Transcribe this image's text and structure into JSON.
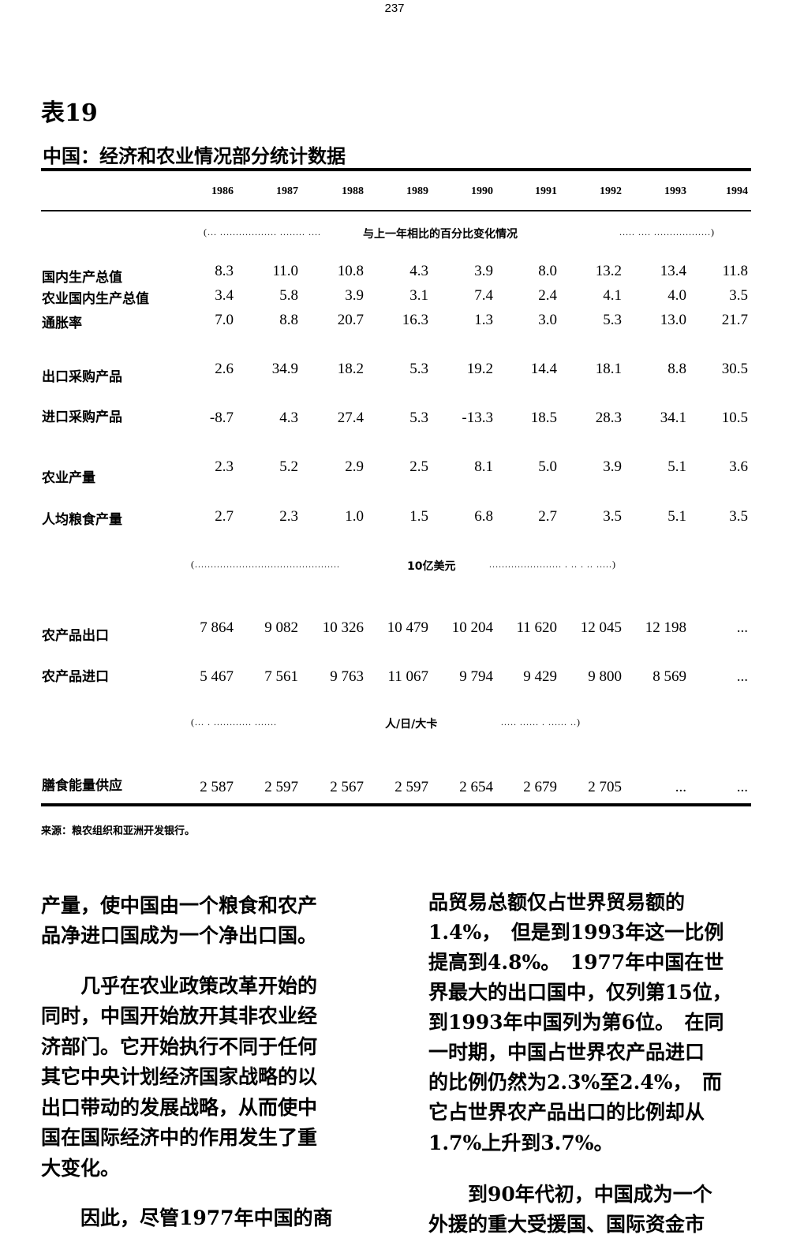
{
  "page_number": "237",
  "table": {
    "number": "表19",
    "title": "中国：经济和农业情况部分统计数据",
    "years": [
      "1986",
      "1987",
      "1988",
      "1989",
      "1990",
      "1991",
      "1992",
      "1993",
      "1994"
    ],
    "sections": [
      {
        "unit": "与上一年相比的百分比变化情况",
        "rows": [
          {
            "label": "国内生产总值",
            "values": [
              "8.3",
              "11.0",
              "10.8",
              "4.3",
              "3.9",
              "8.0",
              "13.2",
              "13.4",
              "11.8"
            ]
          },
          {
            "label": "农业国内生产总值",
            "values": [
              "3.4",
              "5.8",
              "3.9",
              "3.1",
              "7.4",
              "2.4",
              "4.1",
              "4.0",
              "3.5"
            ]
          },
          {
            "label": "通胀率",
            "values": [
              "7.0",
              "8.8",
              "20.7",
              "16.3",
              "1.3",
              "3.0",
              "5.3",
              "13.0",
              "21.7"
            ]
          },
          {
            "label": "出口采购产品",
            "values": [
              "2.6",
              "34.9",
              "18.2",
              "5.3",
              "19.2",
              "14.4",
              "18.1",
              "8.8",
              "30.5"
            ]
          },
          {
            "label": "进口采购产品",
            "values": [
              "-8.7",
              "4.3",
              "27.4",
              "5.3",
              "-13.3",
              "18.5",
              "28.3",
              "34.1",
              "10.5"
            ]
          },
          {
            "label": "农业产量",
            "values": [
              "2.3",
              "5.2",
              "2.9",
              "2.5",
              "8.1",
              "5.0",
              "3.9",
              "5.1",
              "3.6"
            ]
          },
          {
            "label": "人均粮食产量",
            "values": [
              "2.7",
              "2.3",
              "1.0",
              "1.5",
              "6.8",
              "2.7",
              "3.5",
              "5.1",
              "3.5"
            ]
          }
        ]
      },
      {
        "unit": "10亿美元",
        "rows": [
          {
            "label": "农产品出口",
            "values": [
              "7 864",
              "9 082",
              "10 326",
              "10 479",
              "10 204",
              "11 620",
              "12 045",
              "12 198",
              "..."
            ]
          },
          {
            "label": "农产品进口",
            "values": [
              "5 467",
              "7 561",
              "9 763",
              "11 067",
              "9 794",
              "9 429",
              "9 800",
              "8 569",
              "..."
            ]
          }
        ]
      },
      {
        "unit": "人/日/大卡",
        "rows": [
          {
            "label": "膳食能量供应",
            "values": [
              "2 587",
              "2 597",
              "2 567",
              "2 597",
              "2 654",
              "2 679",
              "2 705",
              "...",
              "..."
            ]
          }
        ]
      }
    ],
    "source": "来源：粮农组织和亚洲开发银行。"
  },
  "body": {
    "left_column": [
      "产量，使中国由一个粮食和农产",
      "品净进口国成为一个净出口国。",
      "　　几乎在农业政策改革开始的",
      "同时，中国开始放开其非农业经",
      "济部门。它开始执行不同于任何",
      "其它中央计划经济国家战略的以",
      "出口带动的发展战略，从而使中",
      "国在国际经济中的作用发生了重",
      "大变化。",
      "　　因此，尽管1977年中国的商"
    ],
    "right_column": [
      "品贸易总额仅占世界贸易额的",
      "1.4%，　但是到1993年这一比例",
      "提高到4.8%。　1977年中国在世",
      "界最大的出口国中，仅列第15位，",
      "到1993年中国列为第6位。　在同",
      "一时期，中国占世界农产品进口",
      "的比例仍然为2.3%至2.4%，　而",
      "它占世界农产品出口的比例却从",
      "1.7%上升到3.7%。",
      "　　到90年代初，中国成为一个",
      "外援的重大受援国、国际资金市"
    ]
  }
}
